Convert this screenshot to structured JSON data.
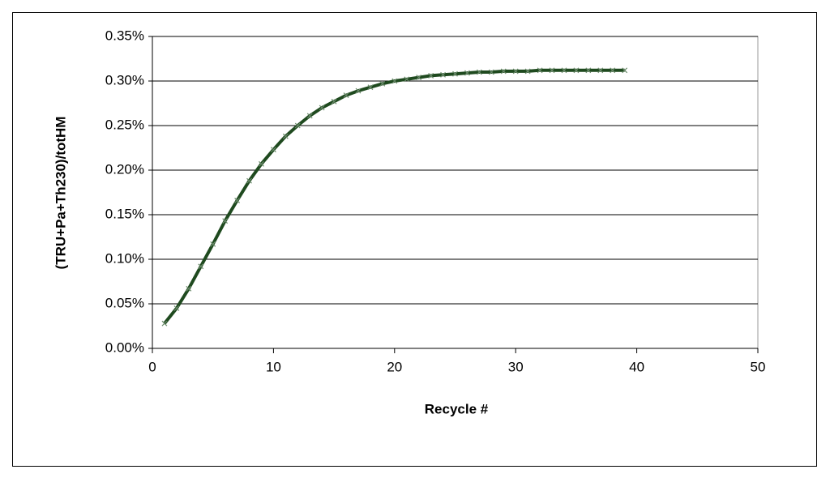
{
  "chart_data": {
    "type": "line",
    "x_label": "Recycle #",
    "y_label": "(TRU+Pa+Th230)/totHM",
    "x": [
      1,
      2,
      3,
      4,
      5,
      6,
      7,
      8,
      9,
      10,
      11,
      12,
      13,
      14,
      15,
      16,
      17,
      18,
      19,
      20,
      21,
      22,
      23,
      24,
      25,
      26,
      27,
      28,
      29,
      30,
      31,
      32,
      33,
      34,
      35,
      36,
      37,
      38,
      39
    ],
    "values": [
      0.028,
      0.045,
      0.067,
      0.092,
      0.117,
      0.143,
      0.166,
      0.188,
      0.207,
      0.223,
      0.238,
      0.25,
      0.261,
      0.27,
      0.277,
      0.284,
      0.289,
      0.293,
      0.297,
      0.3,
      0.302,
      0.304,
      0.306,
      0.307,
      0.308,
      0.309,
      0.31,
      0.31,
      0.311,
      0.311,
      0.311,
      0.312,
      0.312,
      0.312,
      0.312,
      0.312,
      0.312,
      0.312,
      0.312
    ],
    "color": "#1f4a1f",
    "xlim": [
      0,
      50
    ],
    "xticks": [
      0,
      10,
      20,
      30,
      40,
      50
    ],
    "ylim": [
      0,
      0.35
    ],
    "yticks": [
      {
        "value": 0,
        "label": "0.00%"
      },
      {
        "value": 0.05,
        "label": "0.05%"
      },
      {
        "value": 0.1,
        "label": "0.10%"
      },
      {
        "value": 0.15,
        "label": "0.15%"
      },
      {
        "value": 0.2,
        "label": "0.20%"
      },
      {
        "value": 0.25,
        "label": "0.25%"
      },
      {
        "value": 0.3,
        "label": "0.30%"
      },
      {
        "value": 0.35,
        "label": "0.35%"
      }
    ],
    "grid": true
  }
}
